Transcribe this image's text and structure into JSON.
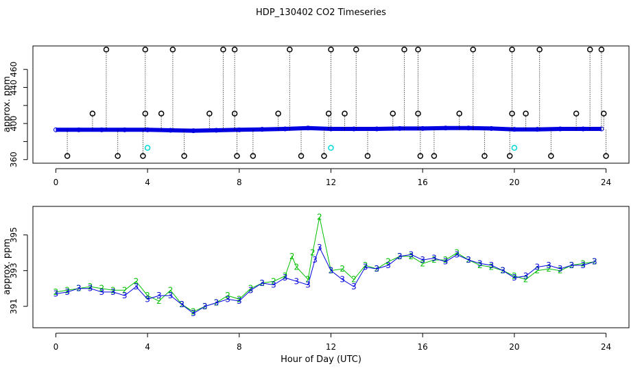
{
  "title": "HDP_130402  CO2 Timeseries",
  "xlabel": "Hour of Day (UTC)",
  "colors": {
    "axis": "#000000",
    "series2": "#00c000",
    "series3": "#0000e0",
    "cyan": "#00d8d8",
    "outlier": "#000000"
  },
  "chart_data": [
    {
      "type": "scatter",
      "ylabel": "approx. ppm",
      "xlim": [
        -1,
        25
      ],
      "ylim": [
        356,
        486
      ],
      "xticks": [
        0,
        4,
        8,
        12,
        16,
        20,
        24
      ],
      "yticks": [
        360,
        380,
        400,
        420,
        440,
        460
      ],
      "ytick_labels": [
        "360",
        "",
        "400",
        "440",
        "460"
      ],
      "ytick_label_values": [
        360,
        380,
        400,
        440,
        460
      ],
      "series": [
        {
          "marker": "circle-line",
          "color": "#0000e0",
          "points": [
            [
              0.0,
              393.0
            ],
            [
              1.0,
              393.0
            ],
            [
              2.0,
              393.0
            ],
            [
              3.0,
              393.0
            ],
            [
              4.0,
              393.0
            ],
            [
              5.0,
              392.5
            ],
            [
              6.0,
              392.0
            ],
            [
              7.0,
              392.5
            ],
            [
              8.0,
              393.0
            ],
            [
              9.0,
              393.5
            ],
            [
              10.0,
              394.0
            ],
            [
              11.0,
              395.0
            ],
            [
              12.0,
              394.0
            ],
            [
              13.0,
              394.0
            ],
            [
              14.0,
              394.0
            ],
            [
              15.0,
              394.5
            ],
            [
              16.0,
              394.5
            ],
            [
              17.0,
              395.0
            ],
            [
              18.0,
              395.0
            ],
            [
              19.0,
              394.5
            ],
            [
              20.0,
              393.5
            ],
            [
              21.0,
              393.5
            ],
            [
              22.0,
              394.0
            ],
            [
              23.0,
              394.0
            ],
            [
              23.8,
              394.0
            ]
          ]
        },
        {
          "marker": "outlier-high",
          "color": "#000000",
          "points": [
            [
              2.2,
              482
            ],
            [
              3.9,
              482
            ],
            [
              5.1,
              482
            ],
            [
              7.3,
              482
            ],
            [
              7.8,
              482
            ],
            [
              10.2,
              482
            ],
            [
              12.0,
              482
            ],
            [
              13.1,
              482
            ],
            [
              15.2,
              482
            ],
            [
              15.8,
              482
            ],
            [
              18.2,
              482
            ],
            [
              19.9,
              482
            ],
            [
              21.1,
              482
            ],
            [
              23.3,
              482
            ],
            [
              23.8,
              482
            ]
          ]
        },
        {
          "marker": "outlier-mid",
          "color": "#000000",
          "points": [
            [
              1.6,
              411
            ],
            [
              3.9,
              411
            ],
            [
              4.6,
              411
            ],
            [
              6.7,
              411
            ],
            [
              7.8,
              411
            ],
            [
              9.7,
              411
            ],
            [
              11.9,
              411
            ],
            [
              12.6,
              411
            ],
            [
              14.7,
              411
            ],
            [
              15.8,
              411
            ],
            [
              17.6,
              411
            ],
            [
              19.9,
              411
            ],
            [
              20.5,
              411
            ],
            [
              22.7,
              411
            ],
            [
              23.9,
              411
            ]
          ]
        },
        {
          "marker": "outlier-low",
          "color": "#000000",
          "points": [
            [
              0.5,
              364
            ],
            [
              2.7,
              364
            ],
            [
              3.8,
              364
            ],
            [
              5.6,
              364
            ],
            [
              7.9,
              364
            ],
            [
              8.6,
              364
            ],
            [
              10.7,
              364
            ],
            [
              11.7,
              364
            ],
            [
              13.6,
              364
            ],
            [
              15.9,
              364
            ],
            [
              16.5,
              364
            ],
            [
              18.7,
              364
            ],
            [
              19.8,
              364
            ],
            [
              21.6,
              364
            ],
            [
              24.0,
              364
            ]
          ]
        },
        {
          "marker": "cyan-circle",
          "color": "#00d8d8",
          "points": [
            [
              4.0,
              373
            ],
            [
              12.0,
              373
            ],
            [
              20.0,
              373
            ]
          ]
        }
      ]
    },
    {
      "type": "scatter",
      "ylabel": "approx. ppm",
      "xlim": [
        -1,
        25
      ],
      "ylim": [
        389.8,
        396.6
      ],
      "xticks": [
        0,
        4,
        8,
        12,
        16,
        20,
        24
      ],
      "yticks": [
        391,
        393,
        395
      ],
      "series": [
        {
          "name": "2",
          "marker": "digit",
          "color": "#00c000",
          "points": [
            [
              0.0,
              391.8
            ],
            [
              0.5,
              391.9
            ],
            [
              1.0,
              392.0
            ],
            [
              1.5,
              392.1
            ],
            [
              2.0,
              392.0
            ],
            [
              2.5,
              391.9
            ],
            [
              3.0,
              391.9
            ],
            [
              3.5,
              392.4
            ],
            [
              4.0,
              391.6
            ],
            [
              4.5,
              391.3
            ],
            [
              5.0,
              391.9
            ],
            [
              5.5,
              391.1
            ],
            [
              6.0,
              390.7
            ],
            [
              6.5,
              391.0
            ],
            [
              7.0,
              391.2
            ],
            [
              7.5,
              391.6
            ],
            [
              8.0,
              391.4
            ],
            [
              8.5,
              392.0
            ],
            [
              9.0,
              392.3
            ],
            [
              9.5,
              392.4
            ],
            [
              10.0,
              392.7
            ],
            [
              10.3,
              393.8
            ],
            [
              10.5,
              393.2
            ],
            [
              11.0,
              392.5
            ],
            [
              11.2,
              394.0
            ],
            [
              11.5,
              396.0
            ],
            [
              12.0,
              393.0
            ],
            [
              12.5,
              393.1
            ],
            [
              13.0,
              392.5
            ],
            [
              13.5,
              393.3
            ],
            [
              14.0,
              393.1
            ],
            [
              14.5,
              393.5
            ],
            [
              15.0,
              393.8
            ],
            [
              15.5,
              393.8
            ],
            [
              16.0,
              393.4
            ],
            [
              16.5,
              393.6
            ],
            [
              17.0,
              393.6
            ],
            [
              17.5,
              394.0
            ],
            [
              18.0,
              393.6
            ],
            [
              18.5,
              393.3
            ],
            [
              19.0,
              393.2
            ],
            [
              19.5,
              393.0
            ],
            [
              20.0,
              392.7
            ],
            [
              20.5,
              392.5
            ],
            [
              21.0,
              393.0
            ],
            [
              21.5,
              393.1
            ],
            [
              22.0,
              393.0
            ],
            [
              22.5,
              393.3
            ],
            [
              23.0,
              393.4
            ],
            [
              23.5,
              393.5
            ]
          ]
        },
        {
          "name": "3",
          "marker": "digit",
          "color": "#0000e0",
          "points": [
            [
              0.0,
              391.7
            ],
            [
              0.5,
              391.8
            ],
            [
              1.0,
              392.0
            ],
            [
              1.5,
              392.0
            ],
            [
              2.0,
              391.8
            ],
            [
              2.5,
              391.8
            ],
            [
              3.0,
              391.6
            ],
            [
              3.5,
              392.1
            ],
            [
              4.0,
              391.4
            ],
            [
              4.5,
              391.6
            ],
            [
              5.0,
              391.6
            ],
            [
              5.5,
              391.1
            ],
            [
              6.0,
              390.6
            ],
            [
              6.5,
              391.0
            ],
            [
              7.0,
              391.2
            ],
            [
              7.5,
              391.4
            ],
            [
              8.0,
              391.3
            ],
            [
              8.5,
              391.9
            ],
            [
              9.0,
              392.3
            ],
            [
              9.5,
              392.2
            ],
            [
              10.0,
              392.6
            ],
            [
              10.5,
              392.4
            ],
            [
              11.0,
              392.2
            ],
            [
              11.3,
              393.6
            ],
            [
              11.5,
              394.3
            ],
            [
              12.0,
              393.0
            ],
            [
              12.5,
              392.5
            ],
            [
              13.0,
              392.1
            ],
            [
              13.5,
              393.2
            ],
            [
              14.0,
              393.1
            ],
            [
              14.5,
              393.3
            ],
            [
              15.0,
              393.8
            ],
            [
              15.5,
              393.9
            ],
            [
              16.0,
              393.6
            ],
            [
              16.5,
              393.7
            ],
            [
              17.0,
              393.5
            ],
            [
              17.5,
              393.9
            ],
            [
              18.0,
              393.6
            ],
            [
              18.5,
              393.4
            ],
            [
              19.0,
              393.3
            ],
            [
              19.5,
              393.0
            ],
            [
              20.0,
              392.6
            ],
            [
              20.5,
              392.7
            ],
            [
              21.0,
              393.2
            ],
            [
              21.5,
              393.3
            ],
            [
              22.0,
              393.1
            ],
            [
              22.5,
              393.3
            ],
            [
              23.0,
              393.3
            ],
            [
              23.5,
              393.5
            ]
          ]
        }
      ]
    }
  ]
}
